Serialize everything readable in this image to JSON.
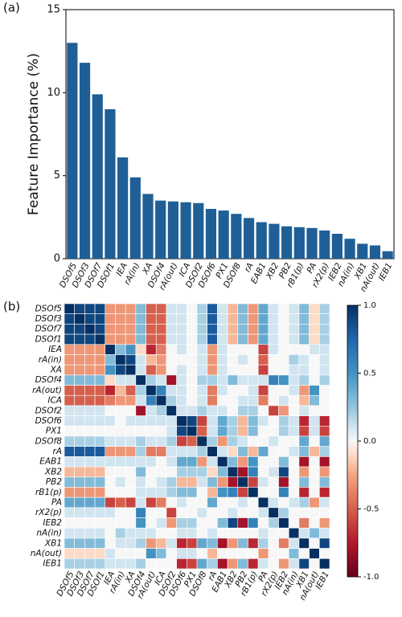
{
  "chart_data": [
    {
      "type": "bar",
      "panel_label": "(a)",
      "ylabel": "Feature Importance (%)",
      "categories": [
        "DSOf5",
        "DSOf3",
        "DSOf7",
        "DSOf1",
        "IEA",
        "rA(in)",
        "XA",
        "DSOf4",
        "rA(out)",
        "ICA",
        "DSOf2",
        "DSOf6",
        "PX1",
        "DSOf8",
        "rA",
        "EAB1",
        "XB2",
        "PB2",
        "rB1(p)",
        "PA",
        "rX2(p)",
        "IEB2",
        "nA(in)",
        "XB1",
        "nA(out)",
        "IEB1"
      ],
      "values": [
        13,
        11.8,
        9.9,
        9.0,
        6.1,
        4.9,
        3.9,
        3.5,
        3.45,
        3.4,
        3.35,
        3.0,
        2.9,
        2.7,
        2.45,
        2.2,
        2.1,
        1.95,
        1.9,
        1.85,
        1.7,
        1.5,
        1.2,
        0.9,
        0.8,
        0.45
      ],
      "color": "#1f5f96",
      "ylim": [
        0,
        15
      ],
      "yticks": [
        0,
        5,
        10,
        15
      ]
    },
    {
      "type": "heatmap",
      "panel_label": "(b)",
      "colormap": "RdBu",
      "categories": [
        "DSOf5",
        "DSOf3",
        "DSOf7",
        "DSOf1",
        "IEA",
        "rA(in)",
        "XA",
        "DSOf4",
        "rA(out)",
        "ICA",
        "DSOf2",
        "DSOf6",
        "PX1",
        "DSOf8",
        "rA",
        "EAB1",
        "XB2",
        "PB2",
        "rB1(p)",
        "PA",
        "rX2(p)",
        "IEB2",
        "nA(in)",
        "XB1",
        "nA(out)",
        "IEB1"
      ],
      "values": [
        [
          1,
          0.9,
          0.9,
          0.9,
          -0.3,
          -0.3,
          -0.3,
          0.3,
          -0.5,
          -0.5,
          0.1,
          0.1,
          0,
          0.2,
          0.8,
          0.1,
          -0.2,
          0.3,
          -0.3,
          0.4,
          0.1,
          0,
          0.1,
          0.3,
          -0.1,
          0.2
        ],
        [
          0.9,
          1,
          0.9,
          0.9,
          -0.3,
          -0.3,
          -0.3,
          0.3,
          -0.5,
          -0.5,
          0.1,
          0.1,
          0,
          0.2,
          0.8,
          0.1,
          -0.2,
          0.3,
          -0.3,
          0.4,
          0.1,
          0,
          0.1,
          0.3,
          -0.1,
          0.2
        ],
        [
          0.9,
          0.9,
          1,
          0.9,
          -0.3,
          -0.3,
          -0.3,
          0.3,
          -0.5,
          -0.5,
          0.1,
          0.1,
          0,
          0.2,
          0.8,
          0.1,
          -0.2,
          0.3,
          -0.3,
          0.4,
          0.1,
          0,
          0.1,
          0.3,
          -0.1,
          0.2
        ],
        [
          0.9,
          0.9,
          0.9,
          1,
          -0.3,
          -0.3,
          -0.3,
          0.3,
          -0.5,
          -0.5,
          0.1,
          0.1,
          0,
          0.2,
          0.8,
          0.1,
          -0.2,
          0.3,
          -0.3,
          0.4,
          0.1,
          0,
          0.1,
          0.3,
          -0.1,
          0.2
        ],
        [
          -0.3,
          -0.3,
          -0.3,
          -0.3,
          1,
          0.3,
          0.5,
          -0.1,
          -0.7,
          -0.4,
          0,
          0.1,
          0,
          0.1,
          -0.3,
          0.1,
          0,
          0,
          0,
          -0.6,
          0.1,
          0,
          0,
          0,
          0.1,
          0.1
        ],
        [
          -0.3,
          -0.3,
          -0.3,
          -0.3,
          0.3,
          1,
          0.9,
          0.1,
          -0.2,
          -0.3,
          0,
          0,
          0,
          0.1,
          -0.3,
          0.1,
          0,
          0.1,
          0,
          -0.5,
          0,
          0,
          0.2,
          0.1,
          0,
          0.1
        ],
        [
          -0.3,
          -0.3,
          -0.3,
          -0.3,
          0.5,
          0.9,
          1,
          0.1,
          -0.5,
          -0.3,
          0,
          0.1,
          0,
          0.1,
          -0.3,
          0.1,
          0,
          0,
          0,
          -0.6,
          0,
          0,
          0.1,
          0.1,
          0,
          0.1
        ],
        [
          0.3,
          0.3,
          0.3,
          0.3,
          -0.1,
          0.1,
          0.1,
          1,
          0.2,
          0.1,
          -0.8,
          0.1,
          0,
          0.2,
          0.2,
          0.1,
          0.3,
          0.1,
          0.1,
          0.1,
          0.6,
          0.5,
          0.1,
          0.2,
          0,
          0.2
        ],
        [
          -0.5,
          -0.5,
          -0.5,
          -0.5,
          -0.7,
          -0.2,
          -0.5,
          0.2,
          1,
          0.6,
          0.1,
          0.1,
          0,
          0.1,
          -0.4,
          0.1,
          0,
          0,
          0.1,
          -0.6,
          0,
          0,
          0.1,
          -0.3,
          0.5,
          0
        ],
        [
          -0.5,
          -0.5,
          -0.5,
          -0.5,
          -0.4,
          -0.3,
          -0.3,
          0.1,
          0.6,
          1,
          0.2,
          0.1,
          0,
          0.1,
          -0.4,
          0,
          0,
          0.1,
          0.1,
          -0.4,
          0,
          0.1,
          0,
          -0.2,
          0.3,
          0
        ],
        [
          0.1,
          0.1,
          0.1,
          0.1,
          0,
          0,
          0,
          -0.8,
          0.1,
          0.2,
          1,
          0.1,
          0.1,
          0.2,
          0.1,
          0.1,
          0,
          0.2,
          0.2,
          0,
          -0.6,
          -0.3,
          0,
          0.1,
          0,
          0
        ],
        [
          0.1,
          0.1,
          0.1,
          0.1,
          0.1,
          0,
          0.1,
          0.1,
          0.1,
          0.1,
          0.1,
          1,
          0.9,
          -0.6,
          0.1,
          0.4,
          0.2,
          -0.2,
          0.3,
          0.1,
          0,
          0.2,
          0.1,
          -0.7,
          0.1,
          -0.7
        ],
        [
          0,
          0,
          0,
          0,
          0,
          0,
          0,
          0,
          0,
          0,
          0.1,
          0.9,
          1,
          -0.5,
          0.1,
          0.4,
          0.2,
          -0.2,
          0.3,
          0,
          0,
          0.2,
          0.1,
          -0.6,
          0.1,
          -0.6
        ],
        [
          0.2,
          0.2,
          0.2,
          0.2,
          0.1,
          0.1,
          0.1,
          0.2,
          0.1,
          0.1,
          0.2,
          -0.6,
          -0.5,
          1,
          0.2,
          -0.3,
          0.2,
          0.1,
          0,
          0,
          0.1,
          0,
          0,
          0.4,
          0,
          0.4
        ],
        [
          0.8,
          0.8,
          0.8,
          0.8,
          -0.3,
          -0.3,
          -0.3,
          0.2,
          -0.4,
          -0.4,
          0.1,
          0.1,
          0.1,
          0.2,
          1,
          0.1,
          -0.1,
          0.3,
          -0.2,
          0.4,
          0,
          0,
          0.1,
          0.3,
          -0.2,
          0.2
        ],
        [
          0.1,
          0.1,
          0.1,
          0.1,
          0.1,
          0.1,
          0.1,
          0.1,
          0.1,
          0,
          0.1,
          0.4,
          0.4,
          -0.3,
          0.1,
          1,
          0.3,
          -0.3,
          0.5,
          0,
          0,
          0.3,
          0,
          -0.8,
          0,
          -0.8
        ],
        [
          -0.2,
          -0.2,
          -0.2,
          -0.2,
          0,
          0,
          0,
          0.3,
          0,
          0,
          0,
          0.2,
          0.2,
          0.2,
          -0.1,
          0.3,
          1,
          -0.8,
          0.6,
          0,
          0.1,
          0.9,
          0,
          -0.3,
          0,
          -0.3
        ],
        [
          0.3,
          0.3,
          0.3,
          0.3,
          0,
          0.1,
          0,
          0.1,
          0,
          0.1,
          0.2,
          -0.2,
          -0.2,
          0.1,
          0.3,
          -0.3,
          -0.8,
          1,
          -0.6,
          0.1,
          0,
          -0.8,
          0,
          0.3,
          0,
          0.3
        ],
        [
          -0.3,
          -0.3,
          -0.3,
          -0.3,
          0,
          0,
          0,
          0.1,
          0.1,
          0.1,
          0.2,
          0.3,
          0.3,
          0,
          -0.2,
          0.5,
          0.6,
          -0.6,
          1,
          0,
          0,
          0.6,
          0,
          -0.7,
          0,
          -0.7
        ],
        [
          0.4,
          0.4,
          0.4,
          0.4,
          -0.6,
          -0.5,
          -0.6,
          0.1,
          -0.6,
          -0.4,
          0,
          0.1,
          0,
          0,
          0.4,
          0,
          0,
          0.1,
          0,
          1,
          0.1,
          0,
          0.1,
          0.2,
          -0.3,
          0.1
        ],
        [
          0.1,
          0.1,
          0.1,
          0.1,
          0.1,
          0,
          0,
          0.6,
          0,
          0,
          -0.6,
          0,
          0,
          0.1,
          0,
          0,
          0.1,
          0,
          0,
          0.1,
          1,
          0.2,
          0,
          0,
          0,
          0
        ],
        [
          0,
          0,
          0,
          0,
          0,
          0,
          0,
          0.5,
          0,
          0.1,
          -0.3,
          0.2,
          0.2,
          0,
          0,
          0.3,
          0.9,
          -0.8,
          0.6,
          0,
          0.2,
          1,
          0,
          -0.4,
          0,
          -0.3
        ],
        [
          0.1,
          0.1,
          0.1,
          0.1,
          0,
          0.2,
          0.1,
          0.1,
          0.1,
          0,
          0,
          0.1,
          0.1,
          0,
          0.1,
          0,
          0,
          0,
          0,
          0.1,
          0,
          0,
          1,
          0.1,
          0.3,
          0.1
        ],
        [
          0.3,
          0.3,
          0.3,
          0.3,
          0,
          0.1,
          0.1,
          0.2,
          -0.3,
          -0.2,
          0.1,
          -0.7,
          -0.6,
          0.4,
          0.3,
          -0.8,
          -0.3,
          0.3,
          -0.7,
          0.2,
          0,
          -0.4,
          0.1,
          1,
          0,
          0.9
        ],
        [
          -0.1,
          -0.1,
          -0.1,
          -0.1,
          0.1,
          0,
          0,
          0,
          0.5,
          0.3,
          0,
          0.1,
          0.1,
          0,
          -0.2,
          0,
          0,
          0,
          0,
          -0.3,
          0,
          0,
          0.3,
          0,
          1,
          0
        ],
        [
          0.2,
          0.2,
          0.2,
          0.2,
          0.1,
          0.1,
          0.1,
          0.2,
          0,
          0,
          0,
          -0.7,
          -0.6,
          0.4,
          0.2,
          -0.8,
          -0.3,
          0.3,
          -0.7,
          0.1,
          0,
          -0.3,
          0.1,
          0.9,
          0,
          1
        ]
      ],
      "zlim": [
        -1,
        1
      ],
      "zticks": [
        {
          "value": 1,
          "label": "1.0"
        },
        {
          "value": 0.5,
          "label": "0.5"
        },
        {
          "value": 0,
          "label": "0.0"
        },
        {
          "value": -0.5,
          "label": "-0.5"
        },
        {
          "value": -1,
          "label": "-1.0"
        }
      ]
    }
  ]
}
